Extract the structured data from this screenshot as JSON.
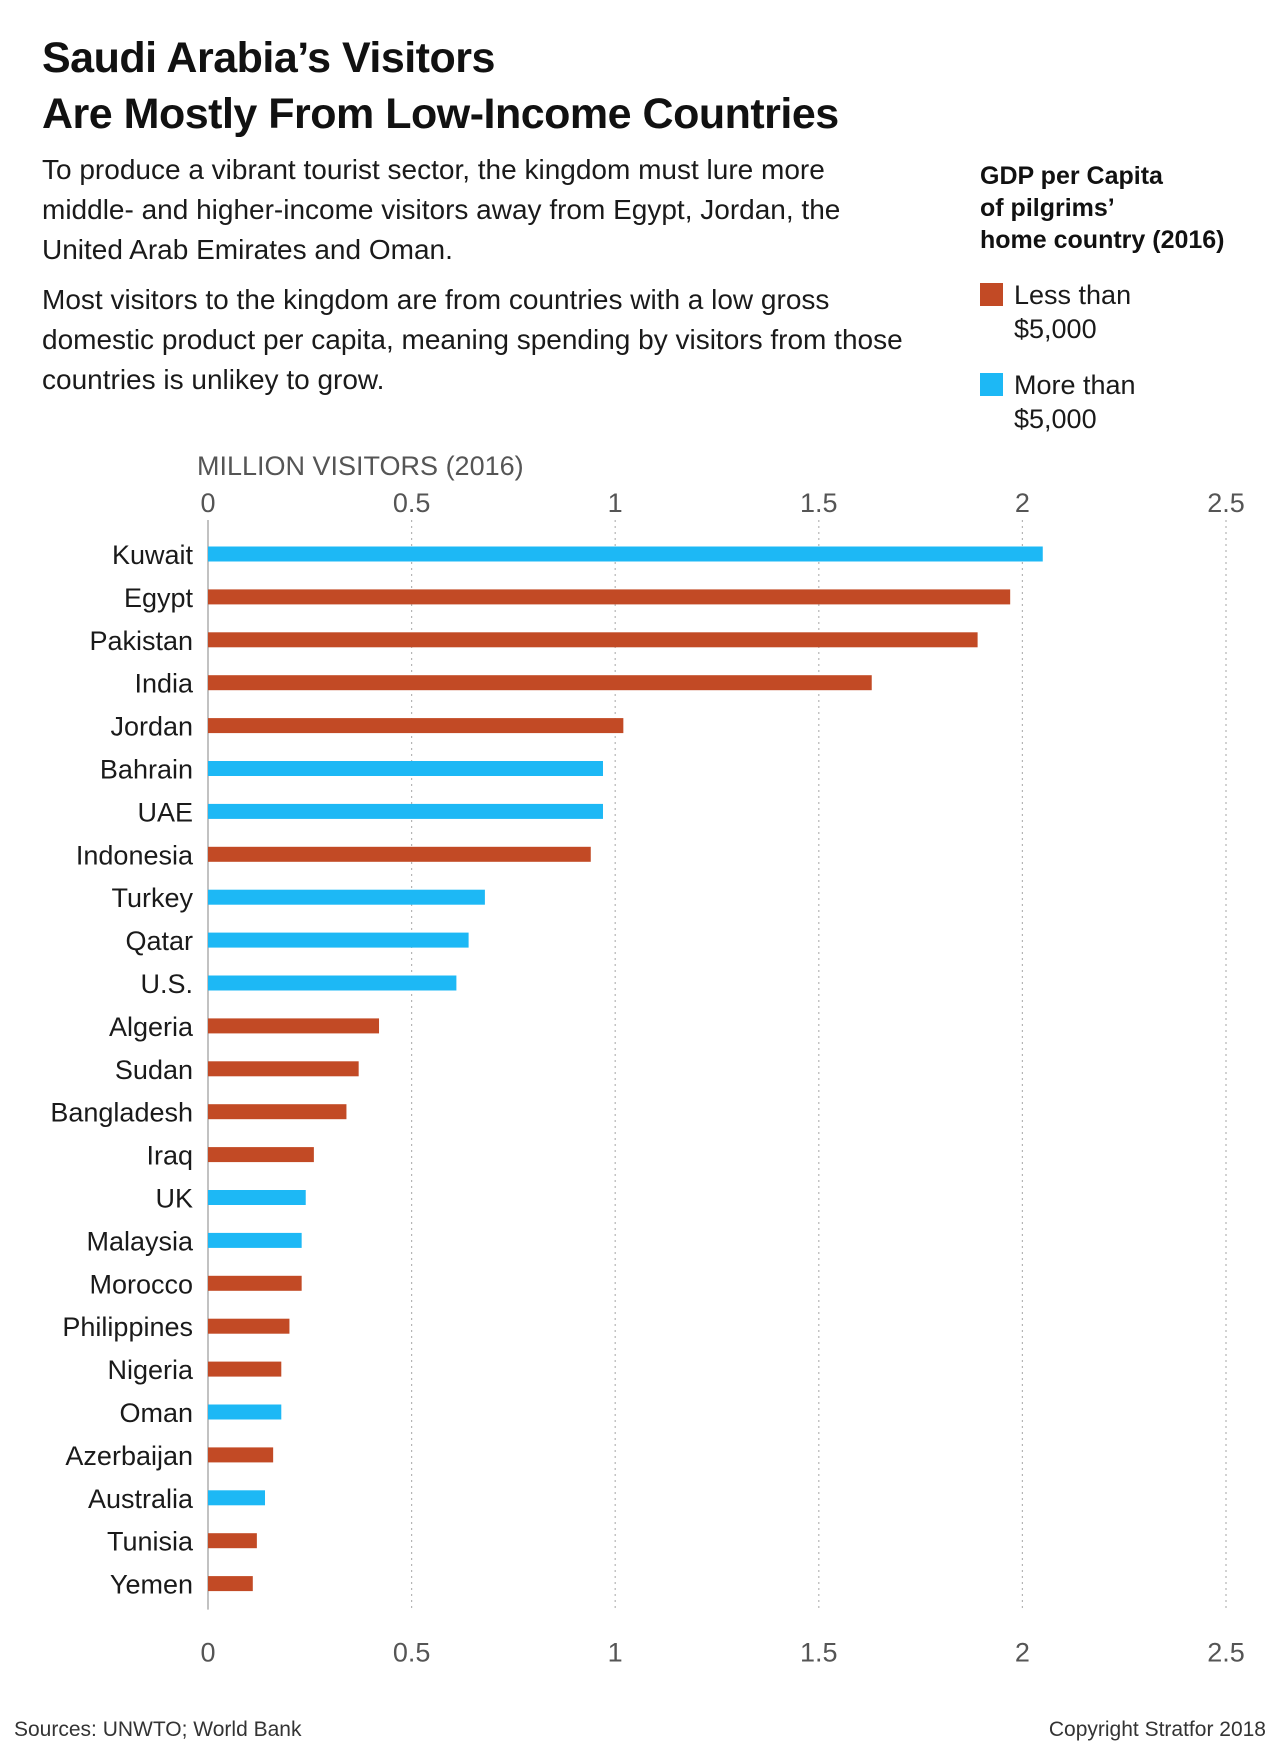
{
  "header": {
    "title_line1": "Saudi Arabia’s Visitors",
    "title_line2": "Are Mostly From Low-Income Countries",
    "dek_p1": "To produce a vibrant tourist sector, the kingdom must lure more middle- and higher-income visitors away from Egypt, Jordan, the United Arab Emirates and Oman.",
    "dek_p2": "Most visitors to the kingdom are from countries with a low gross domestic product per capita, meaning spending by visitors from those countries is unlikey to grow."
  },
  "legend": {
    "title_line1": "GDP per Capita",
    "title_line2": "of pilgrims’",
    "title_line3": "home country (2016)",
    "items": [
      {
        "label_line1": "Less than",
        "label_line2": "$5,000",
        "color": "#c24a25"
      },
      {
        "label_line1": "More than",
        "label_line2": "$5,000",
        "color": "#1db8f5"
      }
    ]
  },
  "footer": {
    "sources": "Sources: UNWTO; World Bank",
    "copyright": "Copyright Stratfor 2018"
  },
  "chart_data": {
    "type": "bar",
    "orientation": "horizontal",
    "xlabel": "MILLION VISITORS (2016)",
    "xlim": [
      0,
      2.5
    ],
    "xticks": [
      "0",
      "0.5",
      "1",
      "1.5",
      "2",
      "2.5"
    ],
    "grid": "vertical dotted",
    "categories": [
      "Kuwait",
      "Egypt",
      "Pakistan",
      "India",
      "Jordan",
      "Bahrain",
      "UAE",
      "Indonesia",
      "Turkey",
      "Qatar",
      "U.S.",
      "Algeria",
      "Sudan",
      "Bangladesh",
      "Iraq",
      "UK",
      "Malaysia",
      "Morocco",
      "Philippines",
      "Nigeria",
      "Oman",
      "Azerbaijan",
      "Australia",
      "Tunisia",
      "Yemen"
    ],
    "values": [
      2.05,
      1.97,
      1.89,
      1.63,
      1.02,
      0.97,
      0.97,
      0.94,
      0.68,
      0.64,
      0.61,
      0.42,
      0.37,
      0.34,
      0.26,
      0.24,
      0.23,
      0.23,
      0.2,
      0.18,
      0.18,
      0.16,
      0.14,
      0.12,
      0.11
    ],
    "groups": [
      "More than $5,000",
      "Less than $5,000",
      "Less than $5,000",
      "Less than $5,000",
      "Less than $5,000",
      "More than $5,000",
      "More than $5,000",
      "Less than $5,000",
      "More than $5,000",
      "More than $5,000",
      "More than $5,000",
      "Less than $5,000",
      "Less than $5,000",
      "Less than $5,000",
      "Less than $5,000",
      "More than $5,000",
      "More than $5,000",
      "Less than $5,000",
      "Less than $5,000",
      "Less than $5,000",
      "More than $5,000",
      "Less than $5,000",
      "More than $5,000",
      "Less than $5,000",
      "Less than $5,000"
    ],
    "group_colors": {
      "Less than $5,000": "#c24a25",
      "More than $5,000": "#1db8f5"
    }
  }
}
